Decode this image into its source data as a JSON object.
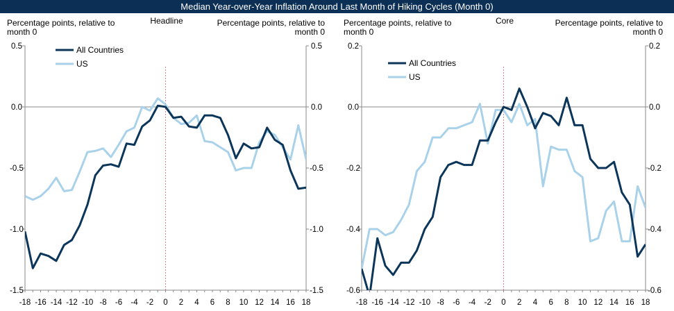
{
  "title": "Median Year-over-Year Inflation Around Last Month of Hiking Cycles (Month 0)",
  "colors": {
    "title_bg": "#0b2f55",
    "all_countries": "#0b3559",
    "us": "#a9d2ea",
    "marker": "#e06070",
    "axis": "#888888"
  },
  "chart_data": [
    {
      "type": "line",
      "panel_title": "Headline",
      "left_label": [
        "Percentage points, relative to",
        "month 0"
      ],
      "right_label": [
        "Percentage points, relative to",
        "month 0"
      ],
      "x": [
        -18,
        -17,
        -16,
        -15,
        -14,
        -13,
        -12,
        -11,
        -10,
        -9,
        -8,
        -7,
        -6,
        -5,
        -4,
        -3,
        -2,
        -1,
        0,
        1,
        2,
        3,
        4,
        5,
        6,
        7,
        8,
        9,
        10,
        11,
        12,
        13,
        14,
        15,
        16,
        17,
        18
      ],
      "xticks": [
        "-18",
        "-16",
        "-14",
        "-12",
        "-10",
        "-8",
        "-6",
        "-4",
        "-2",
        "0",
        "2",
        "4",
        "6",
        "8",
        "10",
        "12",
        "14",
        "16",
        "18"
      ],
      "ylim": [
        -1.5,
        0.5
      ],
      "yticks": [
        "-1.5",
        "-1.0",
        "-0.5",
        "0.0",
        "0.5"
      ],
      "legend_position": "top-left",
      "series": [
        {
          "name": "All Countries",
          "values": [
            -1.02,
            -1.32,
            -1.2,
            -1.22,
            -1.26,
            -1.13,
            -1.09,
            -0.97,
            -0.8,
            -0.56,
            -0.48,
            -0.47,
            -0.49,
            -0.3,
            -0.31,
            -0.16,
            -0.11,
            0.01,
            0.0,
            -0.09,
            -0.08,
            -0.16,
            -0.17,
            -0.07,
            -0.07,
            -0.09,
            -0.23,
            -0.42,
            -0.3,
            -0.34,
            -0.33,
            -0.17,
            -0.27,
            -0.31,
            -0.52,
            -0.67,
            -0.66
          ]
        },
        {
          "name": "US",
          "values": [
            -0.73,
            -0.76,
            -0.73,
            -0.67,
            -0.58,
            -0.69,
            -0.68,
            -0.53,
            -0.37,
            -0.36,
            -0.34,
            -0.41,
            -0.31,
            -0.2,
            -0.17,
            0.0,
            -0.03,
            0.07,
            0.02,
            -0.09,
            -0.14,
            -0.13,
            -0.07,
            -0.28,
            -0.29,
            -0.33,
            -0.37,
            -0.52,
            -0.5,
            -0.5,
            -0.29,
            -0.2,
            -0.23,
            -0.33,
            -0.43,
            -0.15,
            -0.43
          ]
        }
      ]
    },
    {
      "type": "line",
      "panel_title": "Core",
      "left_label": [
        "Percentage points, relative to",
        "month 0"
      ],
      "right_label": [
        "Percentage points, relative to",
        "month 0"
      ],
      "x": [
        -18,
        -17,
        -16,
        -15,
        -14,
        -13,
        -12,
        -11,
        -10,
        -9,
        -8,
        -7,
        -6,
        -5,
        -4,
        -3,
        -2,
        -1,
        0,
        1,
        2,
        3,
        4,
        5,
        6,
        7,
        8,
        9,
        10,
        11,
        12,
        13,
        14,
        15,
        16,
        17,
        18
      ],
      "xticks": [
        "-18",
        "-16",
        "-14",
        "-12",
        "-10",
        "-8",
        "-6",
        "-4",
        "-2",
        "0",
        "2",
        "4",
        "6",
        "8",
        "10",
        "12",
        "14",
        "16",
        "18"
      ],
      "ylim": [
        -0.6,
        0.2
      ],
      "yticks": [
        "-0.6",
        "-0.4",
        "-0.2",
        "0.0",
        "0.2"
      ],
      "legend_position": "top-left",
      "series": [
        {
          "name": "All Countries",
          "values": [
            -0.53,
            -0.62,
            -0.43,
            -0.52,
            -0.55,
            -0.51,
            -0.51,
            -0.47,
            -0.4,
            -0.36,
            -0.23,
            -0.19,
            -0.18,
            -0.19,
            -0.19,
            -0.11,
            -0.11,
            -0.05,
            0.0,
            -0.01,
            0.06,
            0.0,
            -0.07,
            -0.02,
            -0.03,
            -0.06,
            0.03,
            -0.06,
            -0.06,
            -0.17,
            -0.2,
            -0.2,
            -0.18,
            -0.28,
            -0.32,
            -0.49,
            -0.45
          ]
        },
        {
          "name": "US",
          "values": [
            -0.53,
            -0.4,
            -0.4,
            -0.42,
            -0.41,
            -0.37,
            -0.32,
            -0.21,
            -0.18,
            -0.1,
            -0.1,
            -0.07,
            -0.07,
            -0.06,
            -0.05,
            0.01,
            -0.12,
            -0.01,
            -0.01,
            -0.05,
            0.01,
            -0.06,
            -0.04,
            -0.26,
            -0.13,
            -0.14,
            -0.14,
            -0.21,
            -0.23,
            -0.44,
            -0.43,
            -0.34,
            -0.31,
            -0.44,
            -0.44,
            -0.26,
            -0.33
          ]
        }
      ]
    }
  ]
}
